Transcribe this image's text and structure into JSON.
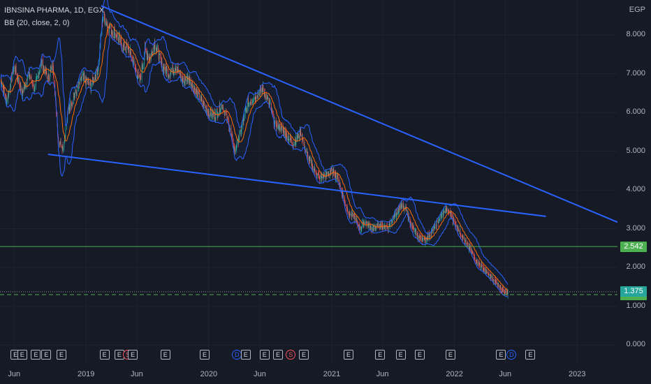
{
  "header": {
    "symbol_line": "IBNSINA PHARMA, 1D, EGX",
    "indicator_line": "BB (20, close, 2, 0)"
  },
  "currency": "EGP",
  "colors": {
    "background": "#161a25",
    "grid": "#1f2330",
    "up_candle": "#26a69a",
    "down_candle": "#ef5350",
    "bb_band": "#2962ff",
    "bb_basis": "#ff6d00",
    "trendline": "#2962ff",
    "hline": "#4caf50",
    "last_price": "#26a69a",
    "badge_green": "#4caf50"
  },
  "chart_data": {
    "type": "candlestick",
    "title": "IBNSINA PHARMA, 1D, EGX",
    "indicator": "BB (20, close, 2, 0)",
    "ylabel": "EGP",
    "yticks": [
      "0.000",
      "1.000",
      "2.000",
      "3.000",
      "4.000",
      "5.000",
      "6.000",
      "7.000",
      "8.000"
    ],
    "ylim": [
      -0.5,
      8.9
    ],
    "xlim": [
      "2018-04-20",
      "2023-05-01"
    ],
    "xticks": [
      {
        "date": "2018-06-01",
        "label": "Jun"
      },
      {
        "date": "2019-01-01",
        "label": "2019"
      },
      {
        "date": "2019-06-01",
        "label": "Jun"
      },
      {
        "date": "2020-01-01",
        "label": "2020"
      },
      {
        "date": "2020-06-01",
        "label": "Jun"
      },
      {
        "date": "2021-01-01",
        "label": "2021"
      },
      {
        "date": "2021-06-01",
        "label": "Jun"
      },
      {
        "date": "2022-01-01",
        "label": "2022"
      },
      {
        "date": "2022-06-01",
        "label": "Jun"
      },
      {
        "date": "2023-01-01",
        "label": "2023"
      }
    ],
    "close_path": [
      [
        "2018-04-20",
        6.9
      ],
      [
        "2018-05-10",
        6.3
      ],
      [
        "2018-06-01",
        7.2
      ],
      [
        "2018-06-25",
        6.5
      ],
      [
        "2018-07-15",
        7.0
      ],
      [
        "2018-08-01",
        6.6
      ],
      [
        "2018-08-20",
        7.3
      ],
      [
        "2018-09-10",
        6.9
      ],
      [
        "2018-09-25",
        7.2
      ],
      [
        "2018-10-10",
        5.3
      ],
      [
        "2018-10-25",
        5.1
      ],
      [
        "2018-11-10",
        6.1
      ],
      [
        "2018-12-01",
        6.5
      ],
      [
        "2018-12-20",
        6.9
      ],
      [
        "2019-01-15",
        6.7
      ],
      [
        "2019-02-05",
        7.1
      ],
      [
        "2019-02-20",
        8.5
      ],
      [
        "2019-03-10",
        8.2
      ],
      [
        "2019-04-01",
        8.0
      ],
      [
        "2019-04-20",
        7.7
      ],
      [
        "2019-05-10",
        7.6
      ],
      [
        "2019-05-25",
        7.2
      ],
      [
        "2019-06-10",
        6.8
      ],
      [
        "2019-06-25",
        7.6
      ],
      [
        "2019-07-10",
        7.4
      ],
      [
        "2019-07-25",
        7.8
      ],
      [
        "2019-08-15",
        7.2
      ],
      [
        "2019-09-05",
        7.0
      ],
      [
        "2019-09-25",
        7.2
      ],
      [
        "2019-10-15",
        6.8
      ],
      [
        "2019-11-01",
        6.9
      ],
      [
        "2019-11-20",
        6.6
      ],
      [
        "2019-12-10",
        6.3
      ],
      [
        "2020-01-01",
        6.0
      ],
      [
        "2020-01-20",
        5.9
      ],
      [
        "2020-02-10",
        6.2
      ],
      [
        "2020-03-01",
        5.7
      ],
      [
        "2020-03-18",
        5.0
      ],
      [
        "2020-04-05",
        5.5
      ],
      [
        "2020-04-25",
        6.2
      ],
      [
        "2020-05-15",
        6.4
      ],
      [
        "2020-06-10",
        6.6
      ],
      [
        "2020-07-01",
        6.2
      ],
      [
        "2020-07-15",
        5.7
      ],
      [
        "2020-08-01",
        5.6
      ],
      [
        "2020-08-20",
        5.4
      ],
      [
        "2020-09-10",
        5.2
      ],
      [
        "2020-10-01",
        5.5
      ],
      [
        "2020-10-15",
        5.0
      ],
      [
        "2020-11-05",
        4.6
      ],
      [
        "2020-11-25",
        4.3
      ],
      [
        "2020-12-15",
        4.4
      ],
      [
        "2021-01-01",
        4.5
      ],
      [
        "2021-01-20",
        4.3
      ],
      [
        "2021-02-05",
        3.8
      ],
      [
        "2021-02-20",
        3.4
      ],
      [
        "2021-03-10",
        3.3
      ],
      [
        "2021-03-25",
        3.0
      ],
      [
        "2021-04-10",
        3.2
      ],
      [
        "2021-05-01",
        3.0
      ],
      [
        "2021-05-25",
        3.1
      ],
      [
        "2021-06-15",
        3.0
      ],
      [
        "2021-07-05",
        3.3
      ],
      [
        "2021-07-25",
        3.6
      ],
      [
        "2021-08-10",
        3.5
      ],
      [
        "2021-08-25",
        3.1
      ],
      [
        "2021-09-15",
        2.8
      ],
      [
        "2021-10-05",
        2.7
      ],
      [
        "2021-10-25",
        2.9
      ],
      [
        "2021-11-15",
        3.2
      ],
      [
        "2021-12-05",
        3.5
      ],
      [
        "2021-12-20",
        3.4
      ],
      [
        "2022-01-05",
        3.1
      ],
      [
        "2022-01-25",
        2.8
      ],
      [
        "2022-02-15",
        2.5
      ],
      [
        "2022-03-05",
        2.2
      ],
      [
        "2022-03-25",
        2.0
      ],
      [
        "2022-04-15",
        1.8
      ],
      [
        "2022-05-05",
        1.6
      ],
      [
        "2022-05-25",
        1.4
      ],
      [
        "2022-06-10",
        1.3
      ]
    ],
    "bollinger_width": 0.35,
    "trendlines": [
      {
        "from": [
          "2019-02-15",
          8.75
        ],
        "to": [
          "2023-05-01",
          3.17
        ]
      },
      {
        "from": [
          "2018-09-10",
          4.92
        ],
        "to": [
          "2022-09-30",
          3.32
        ]
      }
    ],
    "horizontal_lines": [
      {
        "value": 2.542,
        "label": "2.542",
        "style": "solid"
      },
      {
        "value": 1.3,
        "label": "1.300",
        "style": "dashed"
      }
    ],
    "last_price": {
      "value": 1.375,
      "label": "1.375"
    },
    "events": [
      {
        "date": "2018-06-05",
        "type": "E"
      },
      {
        "date": "2018-06-25",
        "type": "E"
      },
      {
        "date": "2018-08-05",
        "type": "E"
      },
      {
        "date": "2018-09-05",
        "type": "E"
      },
      {
        "date": "2018-10-20",
        "type": "E"
      },
      {
        "date": "2019-02-25",
        "type": "E"
      },
      {
        "date": "2019-04-10",
        "type": "E"
      },
      {
        "date": "2019-05-05",
        "type": "S"
      },
      {
        "date": "2019-05-20",
        "type": "E"
      },
      {
        "date": "2019-08-25",
        "type": "E"
      },
      {
        "date": "2019-12-20",
        "type": "E"
      },
      {
        "date": "2020-03-25",
        "type": "D"
      },
      {
        "date": "2020-04-20",
        "type": "E"
      },
      {
        "date": "2020-06-15",
        "type": "E"
      },
      {
        "date": "2020-07-25",
        "type": "E"
      },
      {
        "date": "2020-09-01",
        "type": "S"
      },
      {
        "date": "2020-10-10",
        "type": "E"
      },
      {
        "date": "2021-02-20",
        "type": "E"
      },
      {
        "date": "2021-05-25",
        "type": "E"
      },
      {
        "date": "2021-07-25",
        "type": "E"
      },
      {
        "date": "2021-09-20",
        "type": "E"
      },
      {
        "date": "2021-12-20",
        "type": "E"
      },
      {
        "date": "2022-05-20",
        "type": "E"
      },
      {
        "date": "2022-06-20",
        "type": "D"
      },
      {
        "date": "2022-08-15",
        "type": "E"
      }
    ]
  }
}
